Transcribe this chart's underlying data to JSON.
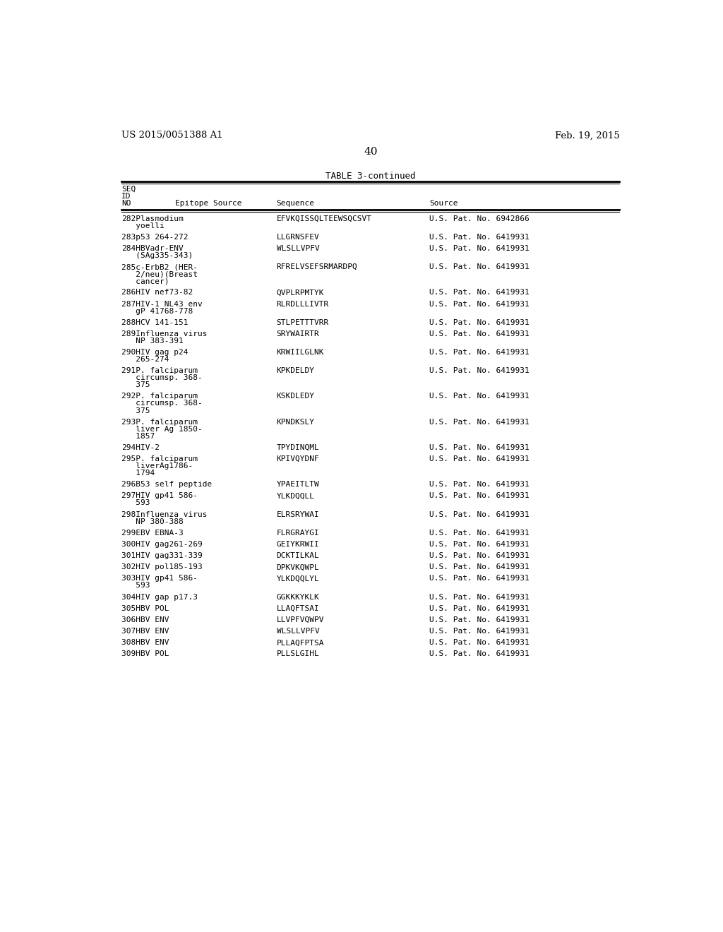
{
  "header_left": "US 2015/0051388 A1",
  "header_right": "Feb. 19, 2015",
  "page_number": "40",
  "table_title": "TABLE 3-continued",
  "rows": [
    [
      "282",
      "Plasmodium\n   yoelli",
      "EFVKQISSQLTEEWSQCSVT",
      "U.S. Pat. No. 6942866"
    ],
    [
      "283",
      "p53 264-272",
      "LLGRNSFEV",
      "U.S. Pat. No. 6419931"
    ],
    [
      "284",
      "HBVadr-ENV\n   (SAg335-343)",
      "WLSLLVPFV",
      "U.S. Pat. No. 6419931"
    ],
    [
      "285",
      "c-ErbB2 (HER-\n   2/neu)(Breast\n   cancer)",
      "RFRELVSEFSRMARDPQ",
      "U.S. Pat. No. 6419931"
    ],
    [
      "286",
      "HIV nef73-82",
      "QVPLRPMTYK",
      "U.S. Pat. No. 6419931"
    ],
    [
      "287",
      "HIV-1 NL43 env\n   gP 41768-778",
      "RLRDLLLIVTR",
      "U.S. Pat. No. 6419931"
    ],
    [
      "288",
      "HCV 141-151",
      "STLPETTTVRR",
      "U.S. Pat. No. 6419931"
    ],
    [
      "289",
      "Influenza virus\n   NP 383-391",
      "SRYWAIRTR",
      "U.S. Pat. No. 6419931"
    ],
    [
      "290",
      "HIV gag p24\n   265-274",
      "KRWIILGLNK",
      "U.S. Pat. No. 6419931"
    ],
    [
      "291",
      "P. falciparum\n   circumsp. 368-\n   375",
      "KPKDELDY",
      "U.S. Pat. No. 6419931"
    ],
    [
      "292",
      "P. falciparum\n   circumsp. 368-\n   375",
      "KSKDLEDY",
      "U.S. Pat. No. 6419931"
    ],
    [
      "293",
      "P. falciparum\n   liver Ag 1850-\n   1857",
      "KPNDKSLY",
      "U.S. Pat. No. 6419931"
    ],
    [
      "294",
      "HIV-2",
      "TPYDINQML",
      "U.S. Pat. No. 6419931"
    ],
    [
      "295",
      "P. falciparum\n   liverAg1786-\n   1794",
      "KPIVQYDNF",
      "U.S. Pat. No. 6419931"
    ],
    [
      "296",
      "B53 self peptide",
      "YPAEITLTW",
      "U.S. Pat. No. 6419931"
    ],
    [
      "297",
      "HIV gp41 586-\n   593",
      "YLKDQQLL",
      "U.S. Pat. No. 6419931"
    ],
    [
      "298",
      "Influenza virus\n   NP 380-388",
      "ELRSRYWAI",
      "U.S. Pat. No. 6419931"
    ],
    [
      "299",
      "EBV EBNA-3",
      "FLRGRAYGI",
      "U.S. Pat. No. 6419931"
    ],
    [
      "300",
      "HIV gag261-269",
      "GEIYKRWII",
      "U.S. Pat. No. 6419931"
    ],
    [
      "301",
      "HIV gag331-339",
      "DCKTILKAL",
      "U.S. Pat. No. 6419931"
    ],
    [
      "302",
      "HIV pol185-193",
      "DPKVKQWPL",
      "U.S. Pat. No. 6419931"
    ],
    [
      "303",
      "HIV gp41 586-\n   593",
      "YLKDQQLYL",
      "U.S. Pat. No. 6419931"
    ],
    [
      "304",
      "HIV gap p17.3",
      "GGKKKYKLK",
      "U.S. Pat. No. 6419931"
    ],
    [
      "305",
      "HBV POL",
      "LLAQFTSAI",
      "U.S. Pat. No. 6419931"
    ],
    [
      "306",
      "HBV ENV",
      "LLVPFVQWPV",
      "U.S. Pat. No. 6419931"
    ],
    [
      "307",
      "HBV ENV",
      "WLSLLVPFV",
      "U.S. Pat. No. 6419931"
    ],
    [
      "308",
      "HBV ENV",
      "PLLAQFPTSA",
      "U.S. Pat. No. 6419931"
    ],
    [
      "309",
      "HBV POL",
      "PLLSLGIHL",
      "U.S. Pat. No. 6419931"
    ]
  ],
  "bg_color": "#ffffff",
  "text_color": "#000000",
  "line_heights": [
    2,
    1,
    2,
    3,
    1,
    2,
    1,
    2,
    2,
    3,
    3,
    3,
    1,
    3,
    1,
    2,
    2,
    1,
    1,
    1,
    1,
    2,
    1,
    1,
    1,
    1,
    1,
    1
  ]
}
